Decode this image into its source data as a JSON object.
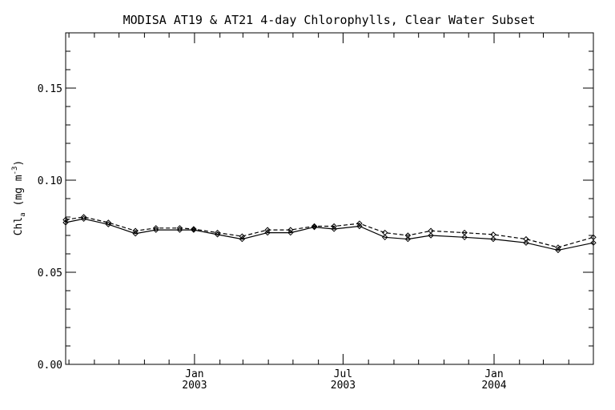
{
  "chart_data": {
    "type": "line",
    "title": "MODISA AT19 & AT21 4-day Chlorophylls, Clear Water Subset",
    "ylabel": {
      "base": "Chl",
      "subscript": "a",
      "unit_open": " (mg m",
      "unit_exp": "-3",
      "unit_close": ")"
    },
    "xlabel": "",
    "x_range": [
      "2002-07-28",
      "2004-05-01"
    ],
    "ylim": [
      0.0,
      0.18
    ],
    "y_ticks": [
      0.0,
      0.05,
      0.1,
      0.15
    ],
    "y_tick_labels": [
      "0.00",
      "0.05",
      "0.10",
      "0.15"
    ],
    "x_ticks": [
      {
        "date": "2003-01-01",
        "label_top": "Jan",
        "label_bottom": "2003"
      },
      {
        "date": "2003-07-01",
        "label_top": "Jul",
        "label_bottom": "2003"
      },
      {
        "date": "2004-01-01",
        "label_top": "Jan",
        "label_bottom": "2004"
      }
    ],
    "x_minor_tick_months": [
      "2002-08-01",
      "2002-09-01",
      "2002-10-01",
      "2002-11-01",
      "2002-12-01",
      "2003-02-01",
      "2003-03-01",
      "2003-04-01",
      "2003-05-01",
      "2003-06-01",
      "2003-08-01",
      "2003-09-01",
      "2003-10-01",
      "2003-11-01",
      "2003-12-01",
      "2004-02-01",
      "2004-03-01",
      "2004-04-01"
    ],
    "grid": false,
    "series": [
      {
        "style": "solid",
        "color": "#000000",
        "points": [
          [
            "2002-07-28",
            0.077
          ],
          [
            "2002-08-19",
            0.079
          ],
          [
            "2002-09-18",
            0.076
          ],
          [
            "2002-10-21",
            0.071
          ],
          [
            "2002-11-15",
            0.073
          ],
          [
            "2002-12-14",
            0.073
          ],
          [
            "2002-12-31",
            0.073
          ],
          [
            "2003-01-29",
            0.0705
          ],
          [
            "2003-02-28",
            0.068
          ],
          [
            "2003-03-31",
            0.0715
          ],
          [
            "2003-04-28",
            0.0715
          ],
          [
            "2003-05-27",
            0.0745
          ],
          [
            "2003-06-20",
            0.0735
          ],
          [
            "2003-07-21",
            0.075
          ],
          [
            "2003-08-21",
            0.069
          ],
          [
            "2003-09-18",
            0.068
          ],
          [
            "2003-10-16",
            0.07
          ],
          [
            "2003-11-26",
            0.069
          ],
          [
            "2003-12-31",
            0.068
          ],
          [
            "2004-02-09",
            0.066
          ],
          [
            "2004-03-19",
            0.062
          ],
          [
            "2004-05-01",
            0.066
          ]
        ]
      },
      {
        "style": "dashed",
        "color": "#000000",
        "points": [
          [
            "2002-07-28",
            0.0785
          ],
          [
            "2002-08-19",
            0.08
          ],
          [
            "2002-09-18",
            0.077
          ],
          [
            "2002-10-21",
            0.0725
          ],
          [
            "2002-11-15",
            0.074
          ],
          [
            "2002-12-14",
            0.074
          ],
          [
            "2002-12-31",
            0.0735
          ],
          [
            "2003-01-29",
            0.0715
          ],
          [
            "2003-02-28",
            0.0695
          ],
          [
            "2003-03-31",
            0.073
          ],
          [
            "2003-04-28",
            0.073
          ],
          [
            "2003-05-27",
            0.075
          ],
          [
            "2003-06-20",
            0.075
          ],
          [
            "2003-07-21",
            0.0765
          ],
          [
            "2003-08-21",
            0.0715
          ],
          [
            "2003-09-18",
            0.07
          ],
          [
            "2003-10-16",
            0.0725
          ],
          [
            "2003-11-26",
            0.0715
          ],
          [
            "2003-12-31",
            0.0705
          ],
          [
            "2004-02-09",
            0.068
          ],
          [
            "2004-03-19",
            0.0635
          ],
          [
            "2004-05-01",
            0.069
          ]
        ]
      }
    ]
  }
}
